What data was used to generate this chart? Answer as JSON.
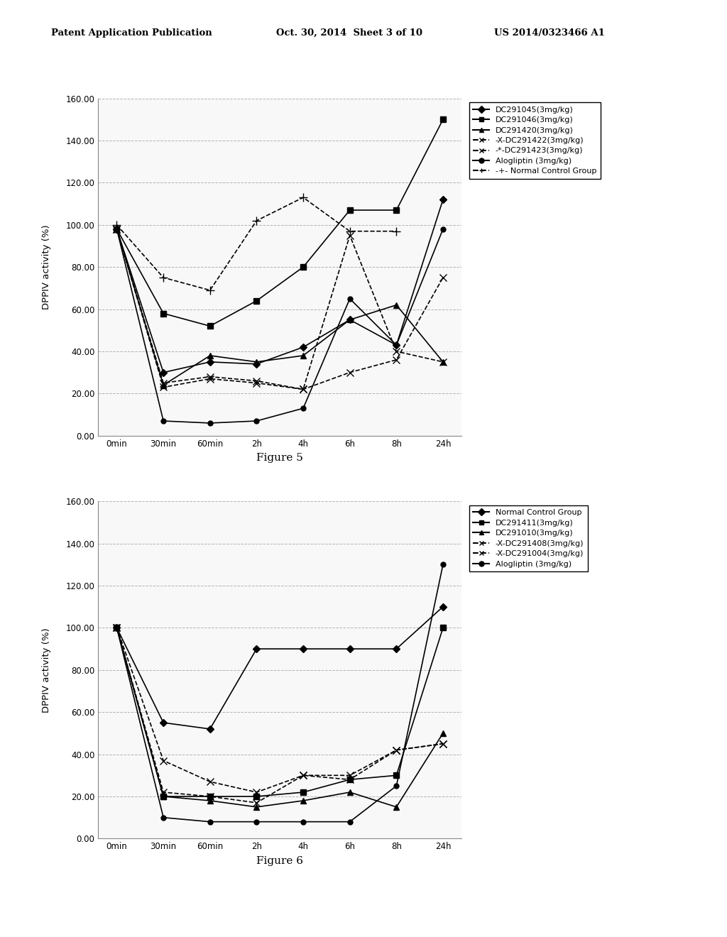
{
  "header_left": "Patent Application Publication",
  "header_mid": "Oct. 30, 2014  Sheet 3 of 10",
  "header_right": "US 2014/0323466 A1",
  "fig5": {
    "title": "Figure 5",
    "xlabel_ticks": [
      "0min",
      "30min",
      "60min",
      "2h",
      "4h",
      "6h",
      "8h",
      "24h"
    ],
    "ylabel": "DPPIV activity (%)",
    "ylim": [
      0.0,
      160.0
    ],
    "yticks": [
      0.0,
      20.0,
      40.0,
      60.0,
      80.0,
      100.0,
      120.0,
      140.0,
      160.0
    ],
    "series": [
      {
        "label": "DC291045(3mg/kg)",
        "marker": "D",
        "linestyle": "-",
        "markersize": 5,
        "values": [
          98,
          30,
          35,
          34,
          42,
          55,
          43,
          112
        ]
      },
      {
        "label": "DC291046(3mg/kg)",
        "marker": "s",
        "linestyle": "-",
        "markersize": 6,
        "values": [
          98,
          58,
          52,
          64,
          80,
          107,
          107,
          150
        ]
      },
      {
        "label": "DC291420(3mg/kg)",
        "marker": "^",
        "linestyle": "-",
        "markersize": 6,
        "values": [
          98,
          24,
          38,
          35,
          38,
          55,
          62,
          35
        ]
      },
      {
        "label": "-X-DC291422(3mg/kg)",
        "marker": "x",
        "linestyle": "--",
        "markersize": 7,
        "values": [
          98,
          25,
          28,
          26,
          22,
          30,
          36,
          75
        ]
      },
      {
        "label": "-*-DC291423(3mg/kg)",
        "marker": "x",
        "linestyle": "--",
        "markersize": 7,
        "values": [
          98,
          23,
          27,
          25,
          22,
          95,
          40,
          35
        ]
      },
      {
        "label": "Alogliptin (3mg/kg)",
        "marker": "o",
        "linestyle": "-",
        "markersize": 5,
        "values": [
          98,
          7,
          6,
          7,
          13,
          65,
          43,
          98
        ]
      },
      {
        "label": "Normal Control Group",
        "marker": "+",
        "linestyle": "--",
        "markersize": 8,
        "values": [
          100,
          75,
          69,
          102,
          113,
          97,
          97,
          null
        ]
      }
    ],
    "legend_labels": [
      "DC291045(3mg/kg)",
      "DC291046(3mg/kg)",
      "DC291420(3mg/kg)",
      "-X-DC291422(3mg/kg)",
      "-*-DC291423(3mg/kg)",
      "Alogliptin (3mg/kg)",
      "-+- Normal Control Group"
    ],
    "legend_markers": [
      "D",
      "s",
      "^",
      "x",
      "x",
      "o",
      "+"
    ],
    "legend_ls": [
      "-",
      "-",
      "-",
      "--",
      "--",
      "-",
      "--"
    ]
  },
  "fig6": {
    "title": "Figure 6",
    "xlabel_ticks": [
      "0min",
      "30min",
      "60min",
      "2h",
      "4h",
      "6h",
      "8h",
      "24h"
    ],
    "ylabel": "DPPIV activity (%)",
    "ylim": [
      0.0,
      160.0
    ],
    "yticks": [
      0.0,
      20.0,
      40.0,
      60.0,
      80.0,
      100.0,
      120.0,
      140.0,
      160.0
    ],
    "series": [
      {
        "label": "Normal Control Group",
        "marker": "D",
        "linestyle": "-",
        "markersize": 5,
        "values": [
          100,
          55,
          52,
          90,
          90,
          90,
          90,
          110
        ]
      },
      {
        "label": "DC291411(3mg/kg)",
        "marker": "s",
        "linestyle": "-",
        "markersize": 6,
        "values": [
          100,
          20,
          20,
          20,
          22,
          28,
          30,
          100
        ]
      },
      {
        "label": "DC291010(3mg/kg)",
        "marker": "^",
        "linestyle": "-",
        "markersize": 6,
        "values": [
          100,
          20,
          18,
          15,
          18,
          22,
          15,
          50
        ]
      },
      {
        "label": "-X-DC291408(3mg/kg)",
        "marker": "x",
        "linestyle": "--",
        "markersize": 7,
        "values": [
          100,
          37,
          27,
          22,
          30,
          30,
          42,
          45
        ]
      },
      {
        "label": "-X-DC291004(3mg/kg)",
        "marker": "x",
        "linestyle": "--",
        "markersize": 7,
        "values": [
          100,
          22,
          20,
          17,
          30,
          28,
          42,
          45
        ]
      },
      {
        "label": "Alogliptin (3mg/kg)",
        "marker": "o",
        "linestyle": "-",
        "markersize": 5,
        "values": [
          100,
          10,
          8,
          8,
          8,
          8,
          25,
          130
        ]
      }
    ],
    "legend_labels": [
      "Normal Control Group",
      "DC291411(3mg/kg)",
      "DC291010(3mg/kg)",
      "-X-DC291408(3mg/kg)",
      "-X-DC291004(3mg/kg)",
      "Alogliptin (3mg/kg)"
    ],
    "legend_markers": [
      "D",
      "s",
      "^",
      "x",
      "x",
      "o"
    ],
    "legend_ls": [
      "-",
      "-",
      "-",
      "--",
      "--",
      "-"
    ]
  },
  "background_color": "#ffffff",
  "grid_color": "#aaaaaa",
  "font_color": "#000000"
}
